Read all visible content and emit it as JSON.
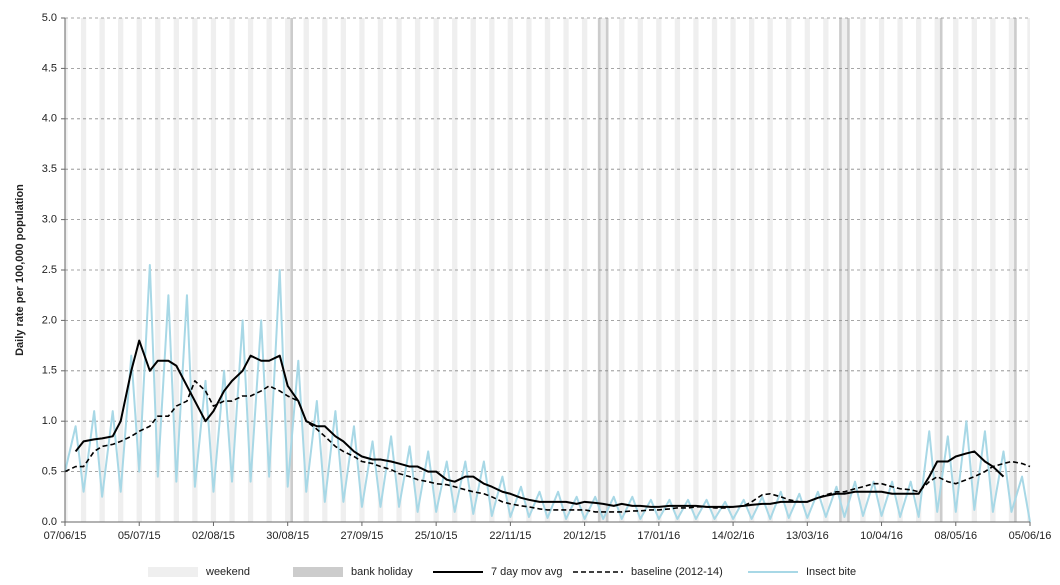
{
  "chart_data": {
    "type": "line",
    "ylabel": "Daily rate per 100,000  population",
    "xlim": [
      0,
      364
    ],
    "xticks": [
      {
        "value": 0,
        "label": "07/06/15"
      },
      {
        "value": 28,
        "label": "05/07/15"
      },
      {
        "value": 56,
        "label": "02/08/15"
      },
      {
        "value": 84,
        "label": "30/08/15"
      },
      {
        "value": 112,
        "label": "27/09/15"
      },
      {
        "value": 140,
        "label": "25/10/15"
      },
      {
        "value": 168,
        "label": "22/11/15"
      },
      {
        "value": 196,
        "label": "20/12/15"
      },
      {
        "value": 224,
        "label": "17/01/16"
      },
      {
        "value": 252,
        "label": "14/02/16"
      },
      {
        "value": 280,
        "label": "13/03/16"
      },
      {
        "value": 308,
        "label": "10/04/16"
      },
      {
        "value": 336,
        "label": "08/05/16"
      },
      {
        "value": 364,
        "label": "05/06/16"
      }
    ],
    "ylim": [
      0,
      5
    ],
    "yticks": [
      {
        "value": 0,
        "label": "0.0"
      },
      {
        "value": 0.5,
        "label": "0.5"
      },
      {
        "value": 1,
        "label": "1.0"
      },
      {
        "value": 1.5,
        "label": "1.5"
      },
      {
        "value": 2,
        "label": "2.0"
      },
      {
        "value": 2.5,
        "label": "2.5"
      },
      {
        "value": 3,
        "label": "3.0"
      },
      {
        "value": 3.5,
        "label": "3.5"
      },
      {
        "value": 4,
        "label": "4.0"
      },
      {
        "value": 4.5,
        "label": "4.5"
      },
      {
        "value": 5,
        "label": "5.0"
      }
    ],
    "grid": true,
    "shading": [
      {
        "name": "weekend",
        "color": "#efefef",
        "days": 2,
        "starts": [
          -1,
          6,
          13,
          20,
          27,
          34,
          41,
          48,
          55,
          62,
          69,
          76,
          83,
          90,
          97,
          104,
          111,
          118,
          125,
          132,
          139,
          146,
          153,
          160,
          167,
          174,
          181,
          188,
          195,
          202,
          209,
          216,
          223,
          230,
          237,
          244,
          251,
          258,
          265,
          272,
          279,
          286,
          293,
          300,
          307,
          314,
          321,
          328,
          335,
          342,
          349,
          356,
          363
        ]
      },
      {
        "name": "bank holiday",
        "color": "#cccccc",
        "days": 1,
        "starts": [
          85,
          201,
          204,
          292,
          295,
          330,
          358
        ]
      }
    ],
    "x": [
      0,
      4,
      7,
      11,
      14,
      18,
      21,
      25,
      28,
      32,
      35,
      39,
      42,
      46,
      49,
      53,
      56,
      60,
      63,
      67,
      70,
      74,
      77,
      81,
      84,
      88,
      91,
      95,
      98,
      102,
      105,
      109,
      112,
      116,
      119,
      123,
      126,
      130,
      133,
      137,
      140,
      144,
      147,
      151,
      154,
      158,
      161,
      165,
      168,
      172,
      175,
      179,
      182,
      186,
      189,
      193,
      196,
      200,
      203,
      207,
      210,
      214,
      217,
      221,
      224,
      228,
      231,
      235,
      238,
      242,
      245,
      249,
      252,
      256,
      259,
      263,
      266,
      270,
      273,
      277,
      280,
      284,
      287,
      291,
      294,
      298,
      301,
      305,
      308,
      312,
      315,
      319,
      322,
      326,
      329,
      333,
      336,
      340,
      343,
      347,
      350,
      354,
      357,
      361,
      364
    ],
    "series": [
      {
        "name": "Insect bite",
        "color": "#a8d8e6",
        "dash": false,
        "width": 2,
        "values": [
          0.5,
          0.95,
          0.3,
          1.1,
          0.25,
          1.1,
          0.3,
          1.65,
          0.5,
          2.55,
          0.45,
          2.25,
          0.4,
          2.25,
          0.35,
          1.4,
          0.3,
          1.5,
          0.4,
          2.0,
          0.4,
          2.0,
          0.45,
          2.5,
          0.35,
          1.6,
          0.3,
          1.2,
          0.2,
          1.1,
          0.2,
          0.95,
          0.15,
          0.8,
          0.15,
          0.85,
          0.15,
          0.75,
          0.1,
          0.7,
          0.1,
          0.6,
          0.1,
          0.6,
          0.08,
          0.6,
          0.06,
          0.45,
          0.05,
          0.35,
          0.05,
          0.3,
          0.04,
          0.3,
          0.03,
          0.25,
          0.03,
          0.25,
          0.03,
          0.25,
          0.03,
          0.25,
          0.03,
          0.22,
          0.03,
          0.22,
          0.03,
          0.22,
          0.03,
          0.22,
          0.03,
          0.2,
          0.03,
          0.22,
          0.03,
          0.25,
          0.03,
          0.3,
          0.04,
          0.28,
          0.04,
          0.3,
          0.05,
          0.35,
          0.05,
          0.4,
          0.06,
          0.4,
          0.06,
          0.4,
          0.05,
          0.4,
          0.05,
          0.9,
          0.1,
          0.85,
          0.1,
          1.0,
          0.12,
          0.9,
          0.1,
          0.7,
          0.1,
          0.45,
          0.0
        ]
      },
      {
        "name": "7 day mov avg",
        "color": "#000000",
        "dash": false,
        "width": 2,
        "values": [
          null,
          0.7,
          0.8,
          0.82,
          0.83,
          0.85,
          1.0,
          1.5,
          1.8,
          1.5,
          1.6,
          1.6,
          1.55,
          1.35,
          1.2,
          1.0,
          1.1,
          1.3,
          1.4,
          1.5,
          1.65,
          1.6,
          1.6,
          1.65,
          1.35,
          1.2,
          1.0,
          0.95,
          0.95,
          0.85,
          0.8,
          0.7,
          0.65,
          0.62,
          0.62,
          0.6,
          0.58,
          0.55,
          0.55,
          0.5,
          0.5,
          0.42,
          0.4,
          0.45,
          0.45,
          0.38,
          0.35,
          0.3,
          0.28,
          0.24,
          0.22,
          0.2,
          0.2,
          0.2,
          0.2,
          0.18,
          0.2,
          0.19,
          0.18,
          0.16,
          0.18,
          0.16,
          0.16,
          0.15,
          0.15,
          0.16,
          0.16,
          0.16,
          0.16,
          0.15,
          0.15,
          0.15,
          0.15,
          0.16,
          0.17,
          0.18,
          0.18,
          0.2,
          0.2,
          0.2,
          0.2,
          0.24,
          0.26,
          0.28,
          0.28,
          0.3,
          0.3,
          0.3,
          0.3,
          0.28,
          0.28,
          0.28,
          0.28,
          0.45,
          0.6,
          0.6,
          0.65,
          0.68,
          0.7,
          0.6,
          0.55,
          0.45,
          null,
          null,
          null
        ]
      },
      {
        "name": "baseline (2012-14)",
        "color": "#000000",
        "dash": true,
        "width": 1.6,
        "values": [
          0.5,
          0.55,
          0.55,
          0.7,
          0.75,
          0.77,
          0.8,
          0.85,
          0.9,
          0.95,
          1.05,
          1.05,
          1.15,
          1.2,
          1.4,
          1.3,
          1.15,
          1.2,
          1.2,
          1.25,
          1.25,
          1.3,
          1.35,
          1.3,
          1.25,
          1.2,
          1.0,
          0.92,
          0.85,
          0.75,
          0.7,
          0.65,
          0.6,
          0.58,
          0.55,
          0.52,
          0.48,
          0.45,
          0.42,
          0.4,
          0.38,
          0.37,
          0.35,
          0.32,
          0.3,
          0.28,
          0.25,
          0.2,
          0.18,
          0.16,
          0.15,
          0.13,
          0.12,
          0.12,
          0.12,
          0.12,
          0.12,
          0.1,
          0.1,
          0.1,
          0.1,
          0.11,
          0.11,
          0.12,
          0.12,
          0.13,
          0.14,
          0.14,
          0.15,
          0.15,
          0.14,
          0.14,
          0.15,
          0.16,
          0.2,
          0.27,
          0.28,
          0.25,
          0.22,
          0.2,
          0.2,
          0.24,
          0.27,
          0.3,
          0.3,
          0.33,
          0.35,
          0.38,
          0.38,
          0.35,
          0.33,
          0.32,
          0.3,
          0.4,
          0.45,
          0.4,
          0.38,
          0.42,
          0.45,
          0.5,
          0.55,
          0.58,
          0.6,
          0.58,
          0.55
        ]
      }
    ]
  }
}
